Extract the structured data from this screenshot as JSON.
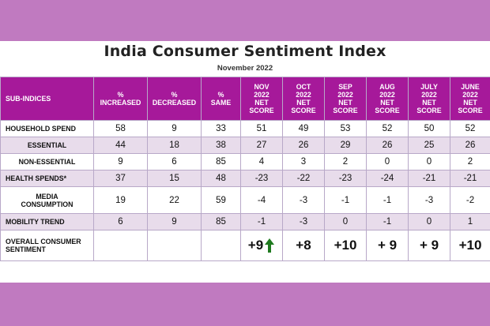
{
  "title": "India Consumer Sentiment Index",
  "subtitle": "November  2022",
  "headers": {
    "sub_indices": "SUB-INDICES",
    "increased": [
      "%",
      "INCREASED"
    ],
    "decreased": [
      "%",
      "DECREASED"
    ],
    "same": [
      "%",
      "SAME"
    ],
    "nov": [
      "NOV",
      "2022",
      "NET",
      "SCORE"
    ],
    "oct": [
      "OCT",
      "2022",
      "NET",
      "SCORE"
    ],
    "sep": [
      "SEP",
      "2022",
      "NET",
      "SCORE"
    ],
    "aug": [
      "AUG",
      "2022",
      "NET",
      "SCORE"
    ],
    "jul": [
      "JULY",
      "2022",
      "NET",
      "SCORE"
    ],
    "jun": [
      "JUNE",
      "2022",
      "NET",
      "SCORE"
    ]
  },
  "rows": [
    {
      "label": "HOUSEHOLD SPEND",
      "increased": "58",
      "decreased": "9",
      "same": "33",
      "nov": "51",
      "oct": "49",
      "sep": "53",
      "aug": "52",
      "jul": "50",
      "jun": "52"
    },
    {
      "label": "ESSENTIAL",
      "increased": "44",
      "decreased": "18",
      "same": "38",
      "nov": "27",
      "oct": "26",
      "sep": "29",
      "aug": "26",
      "jul": "25",
      "jun": "26"
    },
    {
      "label": "NON-ESSENTIAL",
      "increased": "9",
      "decreased": "6",
      "same": "85",
      "nov": "4",
      "oct": "3",
      "sep": "2",
      "aug": "0",
      "jul": "0",
      "jun": "2"
    },
    {
      "label": "HEALTH SPENDS*",
      "increased": "37",
      "decreased": "15",
      "same": "48",
      "nov": "-23",
      "oct": "-22",
      "sep": "-23",
      "aug": "-24",
      "jul": "-21",
      "jun": "-21"
    },
    {
      "label": [
        "MEDIA",
        "CONSUMPTION"
      ],
      "increased": "19",
      "decreased": "22",
      "same": "59",
      "nov": "-4",
      "oct": "-3",
      "sep": "-1",
      "aug": "-1",
      "jul": "-3",
      "jun": "-2"
    },
    {
      "label": "MOBILITY TREND",
      "increased": "6",
      "decreased": "9",
      "same": "85",
      "nov": "-1",
      "oct": "-3",
      "sep": "0",
      "aug": "-1",
      "jul": "0",
      "jun": "1"
    }
  ],
  "overall": {
    "label": [
      "OVERALL CONSUMER",
      "SENTIMENT"
    ],
    "nov": "+9",
    "oct": "+8",
    "sep": "+10",
    "aug": "+ 9",
    "jul": "+ 9",
    "jun": "+10"
  },
  "colors": {
    "header": "#a6199a",
    "band": "#c07ac0",
    "shade": "#e8dceb",
    "up_arrow": "#1f7a1f"
  },
  "icons": {
    "trend": "green-up-arrow-icon"
  }
}
